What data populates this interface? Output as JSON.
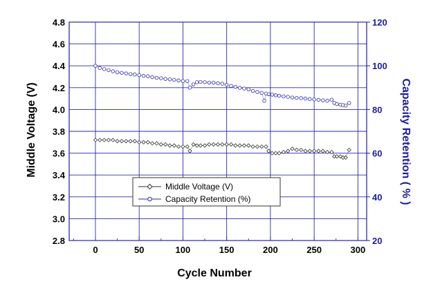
{
  "chart_data": {
    "type": "scatter",
    "title": "",
    "xlabel": "Cycle Number",
    "ylabel_left": "Middle Voltage (V)",
    "ylabel_right": "Capacity Retention ( % )",
    "xlim": [
      -30,
      310
    ],
    "ylim_left": [
      2.8,
      4.8
    ],
    "ylim_right": [
      20,
      120
    ],
    "x_ticks": [
      0,
      50,
      100,
      150,
      200,
      250,
      300
    ],
    "y_left_ticks": [
      "2.8",
      "3.0",
      "3.2",
      "3.4",
      "3.6",
      "3.8",
      "4.0",
      "4.2",
      "4.4",
      "4.6",
      "4.8"
    ],
    "y_right_ticks": [
      "20",
      "40",
      "60",
      "80",
      "100",
      "120"
    ],
    "grid": true,
    "legend_position": "lower-center",
    "colors": {
      "voltage": "#333333",
      "capacity": "#2a2aa6",
      "grid": "#2a2aa6",
      "right_axis": "#1c1c9c"
    },
    "series": [
      {
        "name": "Middle Voltage (V)",
        "axis": "left",
        "marker": "diamond",
        "x": [
          0,
          5,
          10,
          15,
          20,
          25,
          30,
          35,
          40,
          45,
          50,
          55,
          60,
          65,
          70,
          75,
          80,
          85,
          90,
          95,
          100,
          105,
          108,
          112,
          116,
          120,
          125,
          130,
          135,
          140,
          145,
          150,
          155,
          160,
          165,
          170,
          175,
          180,
          185,
          190,
          195,
          198,
          202,
          206,
          210,
          215,
          220,
          225,
          230,
          235,
          240,
          245,
          250,
          255,
          260,
          265,
          270,
          273,
          276,
          280,
          283,
          286,
          290
        ],
        "values": [
          3.72,
          3.72,
          3.72,
          3.72,
          3.72,
          3.71,
          3.71,
          3.71,
          3.71,
          3.71,
          3.7,
          3.7,
          3.7,
          3.69,
          3.69,
          3.68,
          3.68,
          3.67,
          3.67,
          3.66,
          3.66,
          3.66,
          3.62,
          3.68,
          3.67,
          3.67,
          3.67,
          3.68,
          3.68,
          3.68,
          3.68,
          3.68,
          3.68,
          3.67,
          3.67,
          3.67,
          3.67,
          3.66,
          3.66,
          3.66,
          3.66,
          3.62,
          3.6,
          3.6,
          3.6,
          3.61,
          3.62,
          3.64,
          3.63,
          3.63,
          3.62,
          3.62,
          3.62,
          3.62,
          3.62,
          3.61,
          3.61,
          3.57,
          3.57,
          3.57,
          3.56,
          3.56,
          3.63
        ]
      },
      {
        "name": "Capacity Retention (%)",
        "axis": "right",
        "marker": "circle",
        "x": [
          0,
          5,
          10,
          15,
          20,
          25,
          30,
          35,
          40,
          45,
          50,
          55,
          60,
          65,
          70,
          75,
          80,
          85,
          90,
          95,
          100,
          105,
          108,
          112,
          116,
          120,
          125,
          130,
          135,
          140,
          145,
          150,
          155,
          160,
          165,
          170,
          175,
          180,
          185,
          190,
          193,
          195,
          198,
          202,
          206,
          210,
          215,
          220,
          225,
          230,
          235,
          240,
          245,
          250,
          255,
          260,
          265,
          270,
          273,
          276,
          280,
          283,
          286,
          290
        ],
        "values": [
          100,
          99,
          98.5,
          98,
          97.5,
          97,
          96.8,
          96.5,
          96.2,
          96,
          95.7,
          95.4,
          95.2,
          94.8,
          94.5,
          94.3,
          94,
          93.8,
          93.6,
          93.3,
          93,
          93,
          90,
          91.5,
          92.5,
          92.6,
          92.5,
          92.3,
          92.3,
          92,
          91.8,
          91.3,
          90.8,
          90.4,
          89.9,
          89.6,
          89.2,
          88.5,
          88,
          87.6,
          84,
          87.3,
          87,
          86.8,
          86.5,
          86.3,
          86,
          85.8,
          85.5,
          85.3,
          85.2,
          85,
          84.8,
          84.6,
          84.4,
          84.2,
          84,
          84.5,
          83,
          82.5,
          82.2,
          82,
          81.8,
          83
        ]
      }
    ]
  }
}
